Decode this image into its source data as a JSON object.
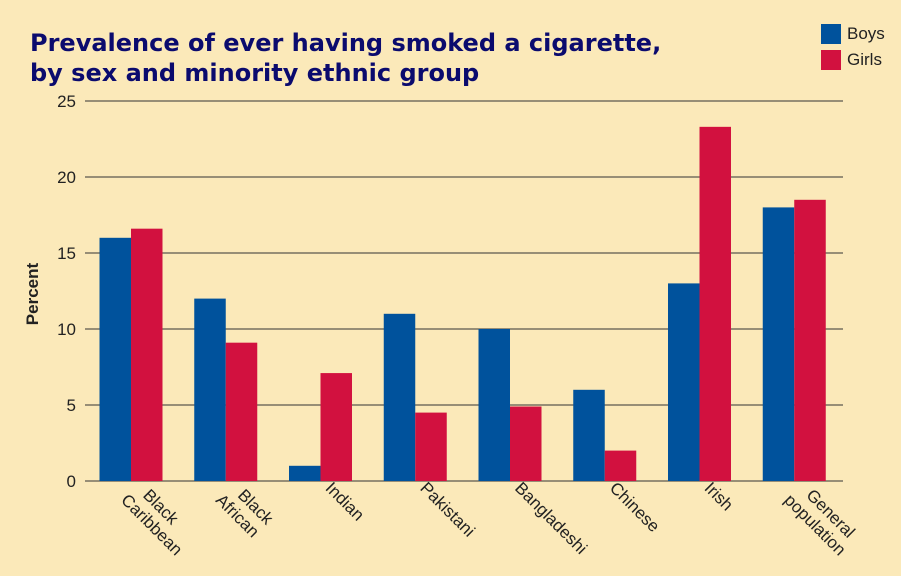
{
  "title_line1": "Prevalence of ever having smoked a cigarette,",
  "title_line2": "by sex and minority ethnic group",
  "colors": {
    "background": "#fbe9b9",
    "boys": "#00529c",
    "girls": "#d2113f",
    "title": "#0b0b6e"
  },
  "chart_data": {
    "type": "bar",
    "ylabel": "Percent",
    "ylim": [
      0,
      25
    ],
    "yticks": [
      0,
      5,
      10,
      15,
      20,
      25
    ],
    "grid": true,
    "legend_position": "top-right",
    "categories": [
      "Black\nCaribbean",
      "Black\nAfrican",
      "Indian",
      "Pakistani",
      "Bangladeshi",
      "Chinese",
      "Irish",
      "General\npopulation"
    ],
    "series": [
      {
        "name": "Boys",
        "values": [
          16,
          12,
          1,
          11,
          10,
          6,
          13,
          18
        ],
        "color": "#00529c"
      },
      {
        "name": "Girls",
        "values": [
          16.6,
          9.1,
          7.1,
          4.5,
          4.9,
          2,
          23.3,
          18.5
        ],
        "color": "#d2113f"
      }
    ]
  }
}
